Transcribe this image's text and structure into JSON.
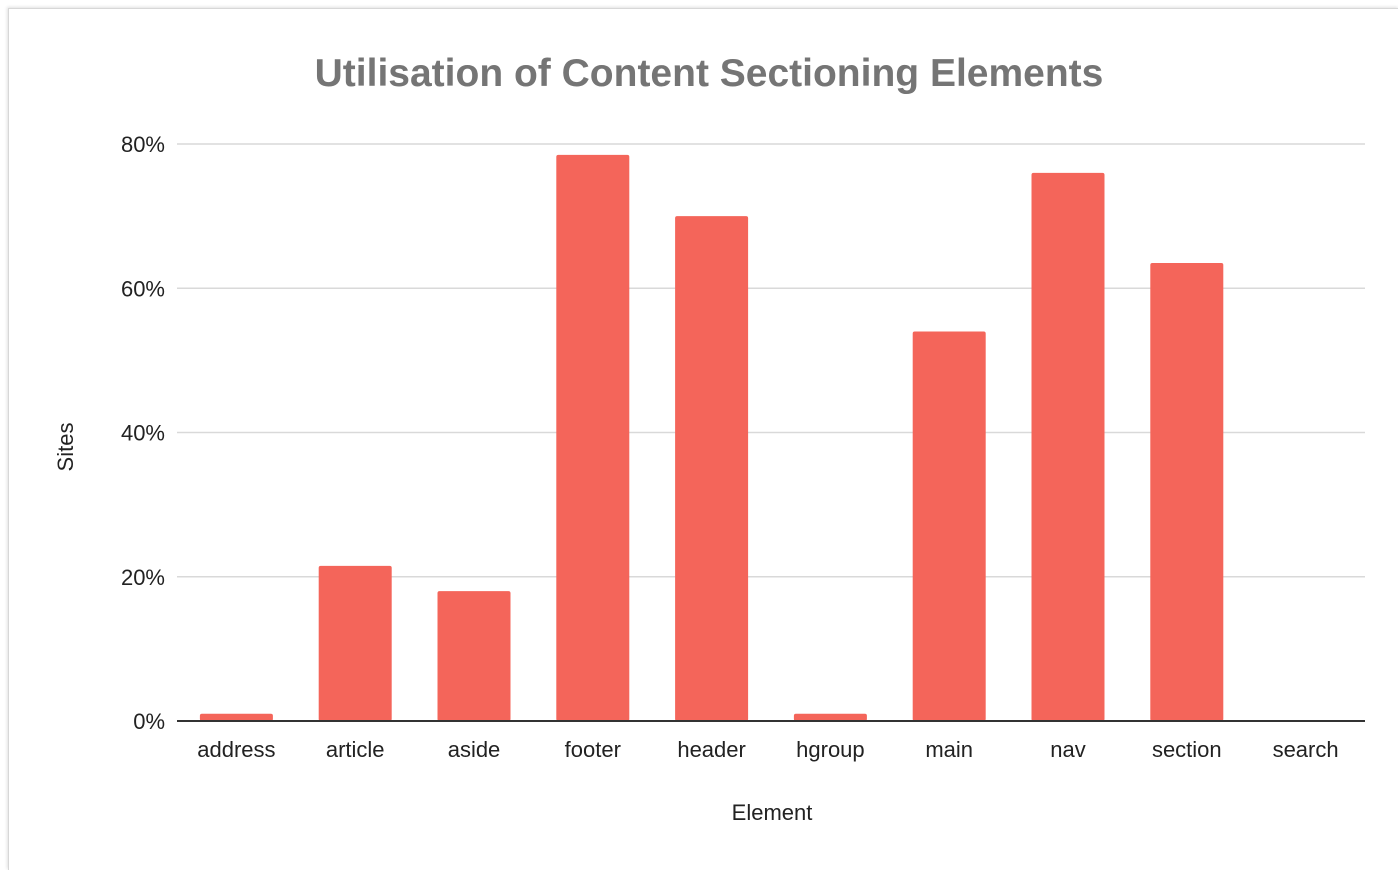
{
  "chart_data": {
    "type": "bar",
    "title": "Utilisation of Content Sectioning Elements",
    "xlabel": "Element",
    "ylabel": "Sites",
    "categories": [
      "address",
      "article",
      "aside",
      "footer",
      "header",
      "hgroup",
      "main",
      "nav",
      "section",
      "search"
    ],
    "values": [
      1,
      21.5,
      18,
      78.5,
      70,
      1,
      54,
      76,
      63.5,
      0
    ],
    "ylim": [
      0,
      80
    ],
    "yticks": [
      0,
      20,
      40,
      60,
      80
    ],
    "ytick_labels": [
      "0%",
      "20%",
      "40%",
      "60%",
      "80%"
    ],
    "grid": true,
    "legend": "none",
    "bar_color": "#f4655a",
    "grid_color": "#d9d9d9",
    "axis_color": "#333333",
    "title_color": "#757575"
  }
}
